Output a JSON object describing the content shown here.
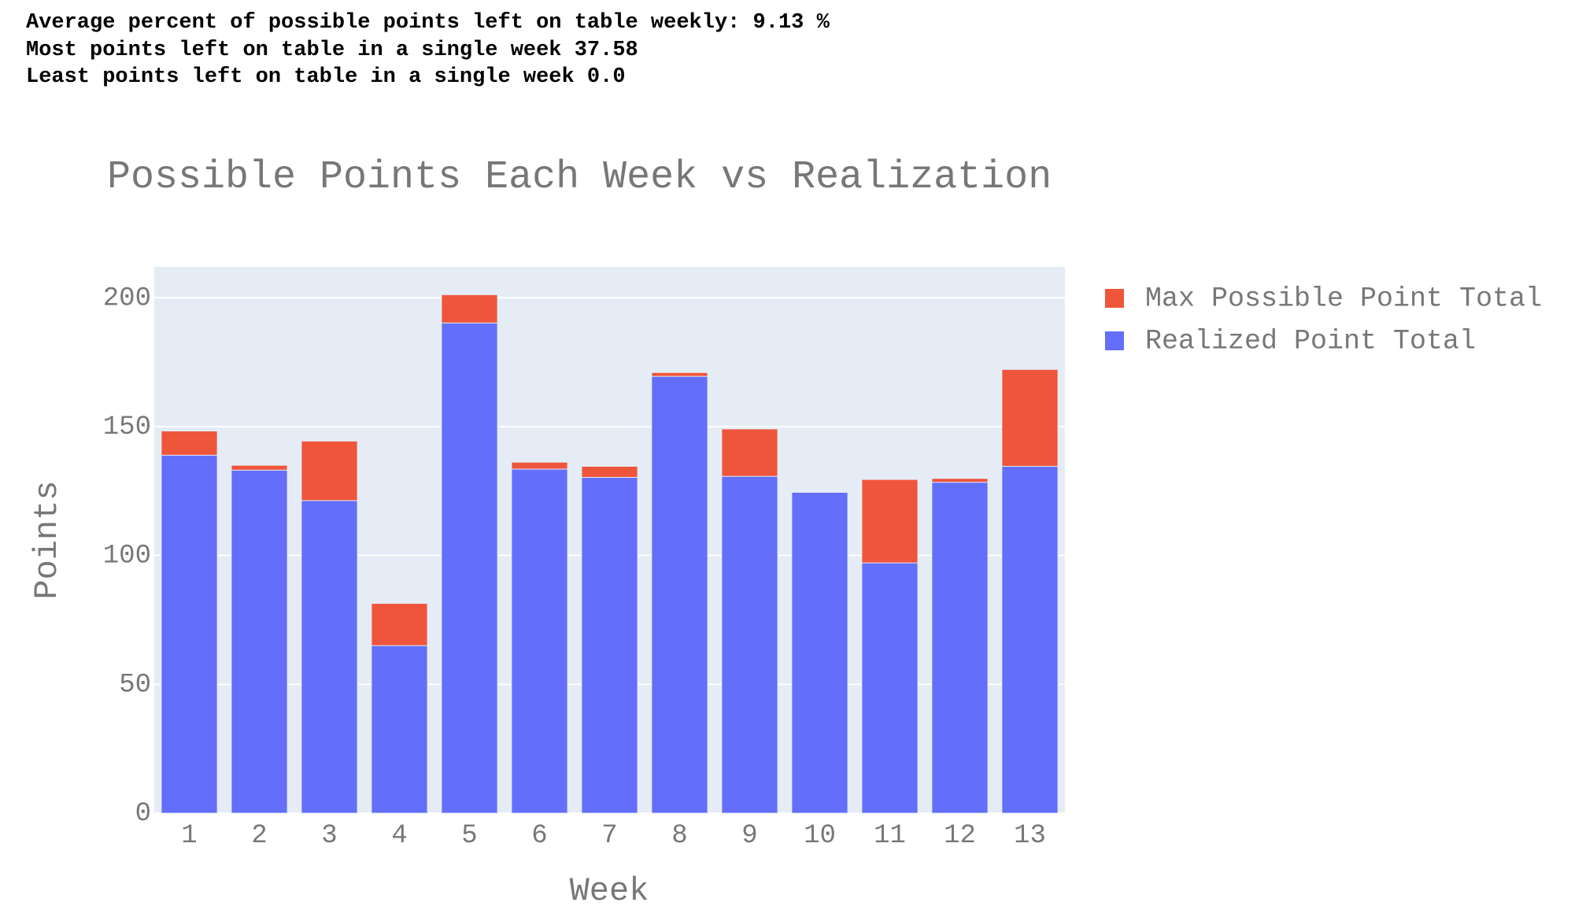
{
  "header_lines": [
    "Average percent of possible points left on table weekly: 9.13 %",
    "Most points left on table in a single week 37.58",
    "Least points left on table in a single week 0.0"
  ],
  "chart_data": {
    "type": "bar",
    "barmode": "overlay",
    "title": "Possible Points Each Week vs Realization",
    "x_label": "Week",
    "y_label": "Points",
    "categories": [
      "1",
      "2",
      "3",
      "4",
      "5",
      "6",
      "7",
      "8",
      "9",
      "10",
      "11",
      "12",
      "13"
    ],
    "series": [
      {
        "name": "Max Possible Point Total",
        "color": "#ef553b",
        "values": [
          148.3,
          135.0,
          144.4,
          81.4,
          201.2,
          136.2,
          134.6,
          171.0,
          149.1,
          124.5,
          129.5,
          129.9,
          172.2
        ]
      },
      {
        "name": "Realized Point Total",
        "color": "#636efa",
        "values": [
          138.9,
          133.1,
          121.3,
          65.0,
          190.2,
          133.5,
          130.3,
          169.5,
          130.7,
          124.5,
          97.1,
          128.4,
          134.6
        ]
      }
    ],
    "ylim": [
      0,
      212
    ],
    "yticks": [
      0,
      50,
      100,
      150,
      200
    ],
    "grid": true,
    "legend": "right",
    "plot_background": "#e5ecf6"
  }
}
